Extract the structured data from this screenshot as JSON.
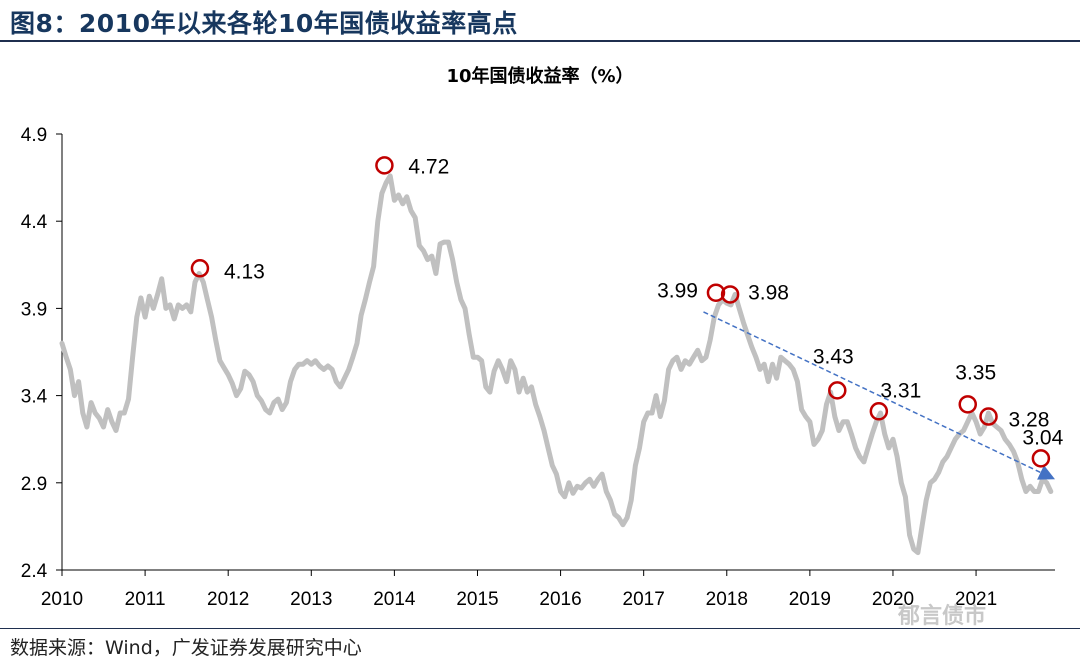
{
  "figure": {
    "title": "图8：2010年以来各轮10年国债收益率高点",
    "source": "数据来源：Wind，广发证券发展研究中心",
    "watermark": "郁言债市"
  },
  "chart_data": {
    "type": "line",
    "title": "10年国债收益率（%）",
    "xlabel": "",
    "ylabel": "",
    "ylim": [
      2.4,
      4.9
    ],
    "xlim": [
      2010.0,
      2021.95
    ],
    "yticks": [
      2.4,
      2.9,
      3.4,
      3.9,
      4.4,
      4.9
    ],
    "ytick_labels": [
      "2.4",
      "2.9",
      "3.4",
      "3.9",
      "4.4",
      "4.9"
    ],
    "xticks": [
      2010,
      2011,
      2012,
      2013,
      2014,
      2015,
      2016,
      2017,
      2018,
      2019,
      2020,
      2021
    ],
    "xtick_labels": [
      "2010",
      "2011",
      "2012",
      "2013",
      "2014",
      "2015",
      "2016",
      "2017",
      "2018",
      "2019",
      "2020",
      "2021"
    ],
    "grid": false,
    "legend": "none",
    "line_color": "#c0c0c0",
    "marker_color": "#c00000",
    "trend_color": "#4472c4",
    "series": [
      {
        "x": [
          2010.0,
          2010.05,
          2010.1,
          2010.15,
          2010.2,
          2010.25,
          2010.3,
          2010.35,
          2010.4,
          2010.45,
          2010.5,
          2010.55,
          2010.6,
          2010.65,
          2010.7,
          2010.75,
          2010.8,
          2010.85,
          2010.9,
          2010.95,
          2011.0,
          2011.05,
          2011.1,
          2011.15,
          2011.2,
          2011.25,
          2011.3,
          2011.35,
          2011.4,
          2011.45,
          2011.5,
          2011.55,
          2011.6,
          2011.65,
          2011.7,
          2011.75,
          2011.8,
          2011.85,
          2011.9,
          2011.95,
          2012.0,
          2012.05,
          2012.1,
          2012.15,
          2012.2,
          2012.25,
          2012.3,
          2012.35,
          2012.4,
          2012.45,
          2012.5,
          2012.55,
          2012.6,
          2012.65,
          2012.7,
          2012.75,
          2012.8,
          2012.85,
          2012.9,
          2012.95,
          2013.0,
          2013.05,
          2013.1,
          2013.15,
          2013.2,
          2013.25,
          2013.3,
          2013.35,
          2013.4,
          2013.45,
          2013.5,
          2013.55,
          2013.6,
          2013.65,
          2013.7,
          2013.75,
          2013.8,
          2013.85,
          2013.9,
          2013.95,
          2014.0,
          2014.05,
          2014.1,
          2014.15,
          2014.2,
          2014.25,
          2014.3,
          2014.35,
          2014.4,
          2014.45,
          2014.5,
          2014.55,
          2014.6,
          2014.65,
          2014.7,
          2014.75,
          2014.8,
          2014.85,
          2014.9,
          2014.95,
          2015.0,
          2015.05,
          2015.1,
          2015.15,
          2015.2,
          2015.25,
          2015.3,
          2015.35,
          2015.4,
          2015.45,
          2015.5,
          2015.55,
          2015.6,
          2015.65,
          2015.7,
          2015.75,
          2015.8,
          2015.85,
          2015.9,
          2015.95,
          2016.0,
          2016.05,
          2016.1,
          2016.15,
          2016.2,
          2016.25,
          2016.3,
          2016.35,
          2016.4,
          2016.45,
          2016.5,
          2016.55,
          2016.6,
          2016.65,
          2016.7,
          2016.75,
          2016.8,
          2016.85,
          2016.9,
          2016.95,
          2017.0,
          2017.05,
          2017.1,
          2017.15,
          2017.2,
          2017.25,
          2017.3,
          2017.35,
          2017.4,
          2017.45,
          2017.5,
          2017.55,
          2017.6,
          2017.65,
          2017.7,
          2017.75,
          2017.8,
          2017.85,
          2017.9,
          2017.95,
          2018.0,
          2018.05,
          2018.1,
          2018.15,
          2018.2,
          2018.25,
          2018.3,
          2018.35,
          2018.4,
          2018.45,
          2018.5,
          2018.55,
          2018.6,
          2018.65,
          2018.7,
          2018.75,
          2018.8,
          2018.85,
          2018.9,
          2018.95,
          2019.0,
          2019.05,
          2019.1,
          2019.15,
          2019.2,
          2019.25,
          2019.3,
          2019.35,
          2019.4,
          2019.45,
          2019.5,
          2019.55,
          2019.6,
          2019.65,
          2019.7,
          2019.75,
          2019.8,
          2019.85,
          2019.9,
          2019.95,
          2020.0,
          2020.05,
          2020.1,
          2020.15,
          2020.2,
          2020.25,
          2020.3,
          2020.35,
          2020.4,
          2020.45,
          2020.5,
          2020.55,
          2020.6,
          2020.65,
          2020.7,
          2020.75,
          2020.8,
          2020.85,
          2020.9,
          2020.95,
          2021.0,
          2021.05,
          2021.1,
          2021.15,
          2021.2,
          2021.25,
          2021.3,
          2021.35,
          2021.4,
          2021.45,
          2021.5,
          2021.55,
          2021.6,
          2021.65,
          2021.7,
          2021.75,
          2021.8,
          2021.85,
          2021.9
        ],
        "values": [
          3.7,
          3.62,
          3.55,
          3.4,
          3.48,
          3.3,
          3.22,
          3.36,
          3.3,
          3.27,
          3.22,
          3.32,
          3.25,
          3.2,
          3.3,
          3.3,
          3.38,
          3.62,
          3.85,
          3.96,
          3.85,
          3.97,
          3.9,
          3.98,
          4.07,
          3.9,
          3.92,
          3.84,
          3.92,
          3.9,
          3.92,
          3.88,
          4.05,
          4.1,
          4.05,
          3.95,
          3.85,
          3.72,
          3.6,
          3.56,
          3.52,
          3.47,
          3.4,
          3.44,
          3.54,
          3.52,
          3.48,
          3.4,
          3.37,
          3.32,
          3.3,
          3.36,
          3.38,
          3.32,
          3.36,
          3.48,
          3.55,
          3.58,
          3.58,
          3.6,
          3.58,
          3.6,
          3.57,
          3.55,
          3.57,
          3.55,
          3.48,
          3.45,
          3.5,
          3.55,
          3.62,
          3.7,
          3.86,
          3.95,
          4.05,
          4.14,
          4.4,
          4.56,
          4.62,
          4.66,
          4.52,
          4.55,
          4.5,
          4.54,
          4.46,
          4.42,
          4.26,
          4.23,
          4.18,
          4.2,
          4.1,
          4.27,
          4.28,
          4.28,
          4.18,
          4.05,
          3.95,
          3.9,
          3.75,
          3.62,
          3.62,
          3.6,
          3.45,
          3.42,
          3.54,
          3.6,
          3.55,
          3.48,
          3.6,
          3.55,
          3.42,
          3.5,
          3.42,
          3.45,
          3.35,
          3.28,
          3.2,
          3.1,
          3.0,
          2.95,
          2.85,
          2.82,
          2.9,
          2.84,
          2.88,
          2.87,
          2.9,
          2.92,
          2.88,
          2.92,
          2.95,
          2.85,
          2.8,
          2.72,
          2.7,
          2.66,
          2.7,
          2.8,
          3.0,
          3.1,
          3.25,
          3.3,
          3.3,
          3.4,
          3.28,
          3.37,
          3.55,
          3.6,
          3.62,
          3.55,
          3.6,
          3.58,
          3.62,
          3.66,
          3.6,
          3.62,
          3.72,
          3.85,
          3.92,
          3.95,
          3.93,
          3.92,
          3.98,
          3.9,
          3.82,
          3.75,
          3.68,
          3.62,
          3.55,
          3.58,
          3.48,
          3.58,
          3.5,
          3.62,
          3.6,
          3.58,
          3.55,
          3.48,
          3.32,
          3.28,
          3.25,
          3.12,
          3.15,
          3.2,
          3.35,
          3.42,
          3.28,
          3.2,
          3.25,
          3.25,
          3.18,
          3.1,
          3.05,
          3.02,
          3.1,
          3.18,
          3.25,
          3.3,
          3.18,
          3.1,
          3.15,
          3.05,
          2.9,
          2.82,
          2.6,
          2.52,
          2.5,
          2.65,
          2.8,
          2.9,
          2.92,
          2.96,
          3.02,
          3.05,
          3.1,
          3.15,
          3.18,
          3.2,
          3.25,
          3.3,
          3.25,
          3.18,
          3.22,
          3.3,
          3.24,
          3.22,
          3.2,
          3.15,
          3.12,
          3.08,
          3.02,
          2.92,
          2.85,
          2.88,
          2.85,
          2.85,
          2.92,
          2.9,
          2.85
        ]
      }
    ],
    "highs": [
      {
        "x": 2011.66,
        "value": 4.13,
        "label": "4.13"
      },
      {
        "x": 2013.88,
        "value": 4.72,
        "label": "4.72"
      },
      {
        "x": 2017.87,
        "value": 3.99,
        "label": "3.99"
      },
      {
        "x": 2018.04,
        "value": 3.98,
        "label": "3.98"
      },
      {
        "x": 2019.33,
        "value": 3.43,
        "label": "3.43"
      },
      {
        "x": 2019.83,
        "value": 3.31,
        "label": "3.31"
      },
      {
        "x": 2020.9,
        "value": 3.35,
        "label": "3.35"
      },
      {
        "x": 2021.15,
        "value": 3.28,
        "label": "3.28"
      },
      {
        "x": 2021.78,
        "value": 3.04,
        "label": "3.04"
      }
    ],
    "trendline": {
      "x": [
        2017.72,
        2021.95
      ],
      "values": [
        3.88,
        2.92
      ]
    }
  }
}
